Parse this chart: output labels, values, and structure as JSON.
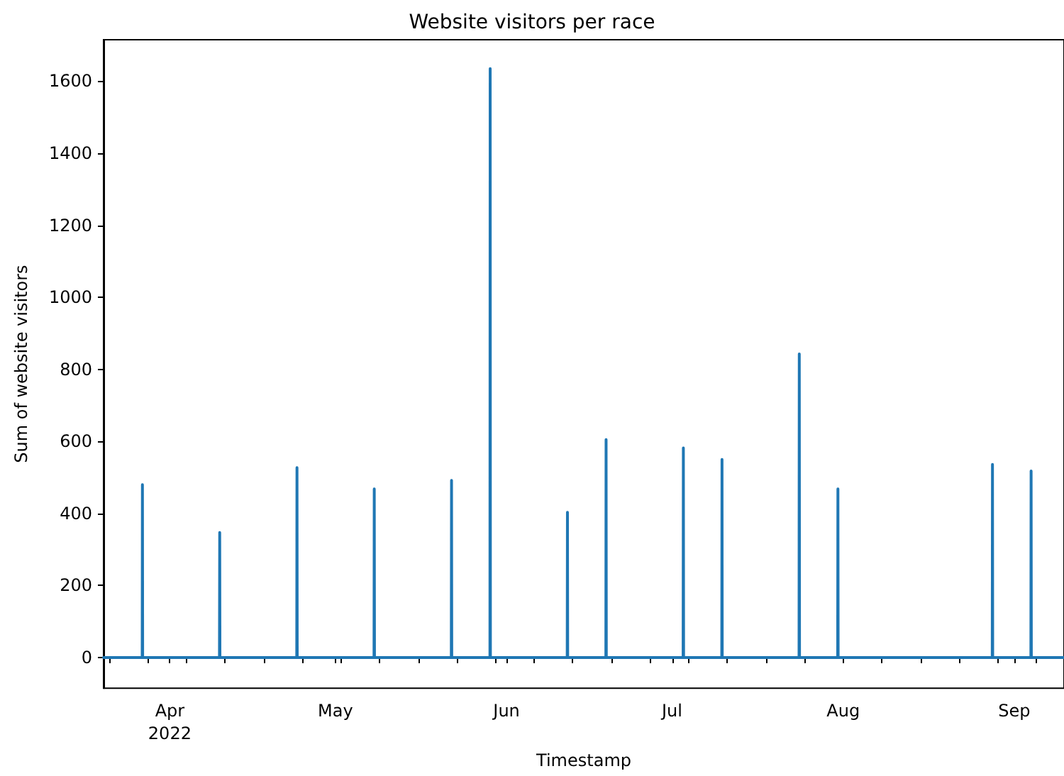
{
  "chart_data": {
    "type": "line",
    "title": "Website visitors per race",
    "xlabel": "Timestamp",
    "ylabel": "Sum of website visitors",
    "x": [
      "2022-03-20T00:00",
      "2022-03-27T00:00",
      "2022-03-27T01:00",
      "2022-03-27T02:00",
      "2022-04-10T00:00",
      "2022-04-10T01:00",
      "2022-04-10T02:00",
      "2022-04-24T00:00",
      "2022-04-24T01:00",
      "2022-04-24T02:00",
      "2022-05-08T00:00",
      "2022-05-08T01:00",
      "2022-05-08T02:00",
      "2022-05-22T00:00",
      "2022-05-22T01:00",
      "2022-05-22T02:00",
      "2022-05-29T00:00",
      "2022-05-29T01:00",
      "2022-05-29T02:00",
      "2022-06-12T00:00",
      "2022-06-12T01:00",
      "2022-06-12T02:00",
      "2022-06-19T00:00",
      "2022-06-19T01:00",
      "2022-06-19T02:00",
      "2022-07-03T00:00",
      "2022-07-03T01:00",
      "2022-07-03T02:00",
      "2022-07-10T00:00",
      "2022-07-10T01:00",
      "2022-07-10T02:00",
      "2022-07-24T00:00",
      "2022-07-24T01:00",
      "2022-07-24T02:00",
      "2022-07-31T00:00",
      "2022-07-31T01:00",
      "2022-07-31T02:00",
      "2022-08-28T00:00",
      "2022-08-28T01:00",
      "2022-08-28T02:00",
      "2022-09-04T00:00",
      "2022-09-04T01:00",
      "2022-09-04T02:00",
      "2022-09-10T00:00"
    ],
    "series": [
      {
        "color": "#1f77b4",
        "values": [
          0,
          0,
          480,
          0,
          0,
          347,
          0,
          0,
          527,
          0,
          0,
          468,
          0,
          0,
          492,
          0,
          0,
          1635,
          0,
          0,
          403,
          0,
          0,
          605,
          0,
          0,
          582,
          0,
          0,
          550,
          0,
          0,
          843,
          0,
          0,
          468,
          0,
          0,
          536,
          0,
          0,
          518,
          0,
          0
        ]
      }
    ],
    "xlim": [
      "2022-03-20",
      "2022-09-10"
    ],
    "xticks": [
      {
        "value": "2022-03-21",
        "label": null
      },
      {
        "value": "2022-03-28",
        "label": null
      },
      {
        "value": "2022-04-01",
        "label": "Apr\n2022"
      },
      {
        "value": "2022-04-04",
        "label": null
      },
      {
        "value": "2022-04-11",
        "label": null
      },
      {
        "value": "2022-04-18",
        "label": null
      },
      {
        "value": "2022-04-25",
        "label": null
      },
      {
        "value": "2022-05-01",
        "label": "May"
      },
      {
        "value": "2022-05-02",
        "label": null
      },
      {
        "value": "2022-05-09",
        "label": null
      },
      {
        "value": "2022-05-16",
        "label": null
      },
      {
        "value": "2022-05-23",
        "label": null
      },
      {
        "value": "2022-05-30",
        "label": null
      },
      {
        "value": "2022-06-01",
        "label": "Jun"
      },
      {
        "value": "2022-06-06",
        "label": null
      },
      {
        "value": "2022-06-13",
        "label": null
      },
      {
        "value": "2022-06-20",
        "label": null
      },
      {
        "value": "2022-06-27",
        "label": null
      },
      {
        "value": "2022-07-01",
        "label": "Jul"
      },
      {
        "value": "2022-07-04",
        "label": null
      },
      {
        "value": "2022-07-11",
        "label": null
      },
      {
        "value": "2022-07-18",
        "label": null
      },
      {
        "value": "2022-07-25",
        "label": null
      },
      {
        "value": "2022-08-01",
        "label": "Aug"
      },
      {
        "value": "2022-08-08",
        "label": null
      },
      {
        "value": "2022-08-15",
        "label": null
      },
      {
        "value": "2022-08-22",
        "label": null
      },
      {
        "value": "2022-08-29",
        "label": null
      },
      {
        "value": "2022-09-01",
        "label": "Sep"
      },
      {
        "value": "2022-09-05",
        "label": null
      }
    ],
    "ylim": [
      -85,
      1715
    ],
    "yticks": [
      0,
      200,
      400,
      600,
      800,
      1000,
      1200,
      1400,
      1600
    ],
    "grid": false,
    "marker": "none",
    "line_style": "solid"
  }
}
